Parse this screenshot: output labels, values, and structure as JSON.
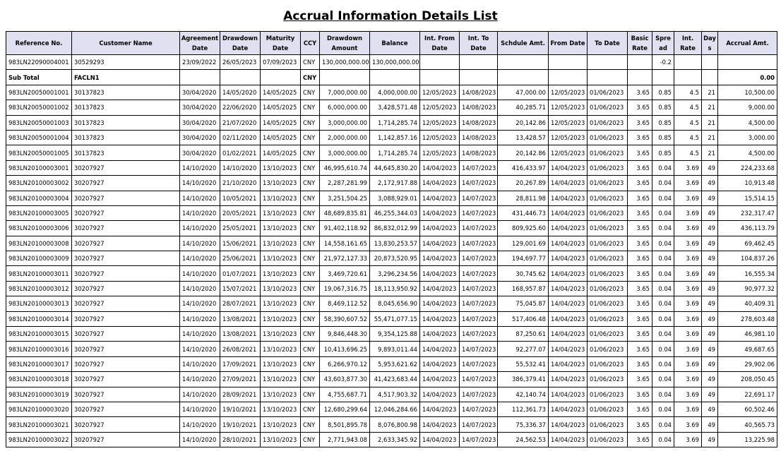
{
  "title": "Accrual Information Details List",
  "headers": [
    "Reference No.",
    "Customer Name",
    "Agreement Date",
    "Drawdown Date",
    "Maturity Date",
    "CCY",
    "Drawdown Amount",
    "Balance",
    "Int. From Date",
    "Int. To Date",
    "Schdule Amt.",
    "From Date",
    "To Date",
    "Basic Rate",
    "Spre ad",
    "Int. Rate",
    "Day s",
    "Accrual Amt."
  ],
  "rows": [
    [
      "983LN22090004001",
      "30529293",
      "23/09/2022",
      "26/05/2023",
      "07/09/2023",
      "CNY",
      "130,000,000.00",
      "130,000,000.00",
      "",
      "",
      "",
      "",
      "",
      "",
      "-0.2",
      "",
      "",
      ""
    ],
    [
      "Sub Total",
      "FACLN1",
      "",
      "",
      "",
      "CNY",
      "",
      "",
      "",
      "",
      "",
      "",
      "",
      "",
      "",
      "",
      "",
      "0.00"
    ],
    [
      "983LN20050001001",
      "30137823",
      "30/04/2020",
      "14/05/2020",
      "14/05/2025",
      "CNY",
      "7,000,000.00",
      "4,000,000.00",
      "12/05/2023",
      "14/08/2023",
      "47,000.00",
      "12/05/2023",
      "01/06/2023",
      "3.65",
      "0.85",
      "4.5",
      "21",
      "10,500.00"
    ],
    [
      "983LN20050001002",
      "30137823",
      "30/04/2020",
      "22/06/2020",
      "14/05/2025",
      "CNY",
      "6,000,000.00",
      "3,428,571.48",
      "12/05/2023",
      "14/08/2023",
      "40,285.71",
      "12/05/2023",
      "01/06/2023",
      "3.65",
      "0.85",
      "4.5",
      "21",
      "9,000.00"
    ],
    [
      "983LN20050001003",
      "30137823",
      "30/04/2020",
      "21/07/2020",
      "14/05/2025",
      "CNY",
      "3,000,000.00",
      "1,714,285.74",
      "12/05/2023",
      "14/08/2023",
      "20,142.86",
      "12/05/2023",
      "01/06/2023",
      "3.65",
      "0.85",
      "4.5",
      "21",
      "4,500.00"
    ],
    [
      "983LN20050001004",
      "30137823",
      "30/04/2020",
      "02/11/2020",
      "14/05/2025",
      "CNY",
      "2,000,000.00",
      "1,142,857.16",
      "12/05/2023",
      "14/08/2023",
      "13,428.57",
      "12/05/2023",
      "01/06/2023",
      "3.65",
      "0.85",
      "4.5",
      "21",
      "3,000.00"
    ],
    [
      "983LN20050001005",
      "30137823",
      "30/04/2020",
      "01/02/2021",
      "14/05/2025",
      "CNY",
      "3,000,000.00",
      "1,714,285.74",
      "12/05/2023",
      "14/08/2023",
      "20,142.86",
      "12/05/2023",
      "01/06/2023",
      "3.65",
      "0.85",
      "4.5",
      "21",
      "4,500.00"
    ],
    [
      "983LN20100003001",
      "30207927",
      "14/10/2020",
      "14/10/2020",
      "13/10/2023",
      "CNY",
      "46,995,610.74",
      "44,645,830.20",
      "14/04/2023",
      "14/07/2023",
      "416,433.97",
      "14/04/2023",
      "01/06/2023",
      "3.65",
      "0.04",
      "3.69",
      "49",
      "224,233.68"
    ],
    [
      "983LN20100003002",
      "30207927",
      "14/10/2020",
      "21/10/2020",
      "13/10/2023",
      "CNY",
      "2,287,281.99",
      "2,172,917.88",
      "14/04/2023",
      "14/07/2023",
      "20,267.89",
      "14/04/2023",
      "01/06/2023",
      "3.65",
      "0.04",
      "3.69",
      "49",
      "10,913.48"
    ],
    [
      "983LN20100003004",
      "30207927",
      "14/10/2020",
      "10/05/2021",
      "13/10/2023",
      "CNY",
      "3,251,504.25",
      "3,088,929.01",
      "14/04/2023",
      "14/07/2023",
      "28,811.98",
      "14/04/2023",
      "01/06/2023",
      "3.65",
      "0.04",
      "3.69",
      "49",
      "15,514.15"
    ],
    [
      "983LN20100003005",
      "30207927",
      "14/10/2020",
      "20/05/2021",
      "13/10/2023",
      "CNY",
      "48,689,835.81",
      "46,255,344.03",
      "14/04/2023",
      "14/07/2023",
      "431,446.73",
      "14/04/2023",
      "01/06/2023",
      "3.65",
      "0.04",
      "3.69",
      "49",
      "232,317.47"
    ],
    [
      "983LN20100003006",
      "30207927",
      "14/10/2020",
      "25/05/2021",
      "13/10/2023",
      "CNY",
      "91,402,118.92",
      "86,832,012.99",
      "14/04/2023",
      "14/07/2023",
      "809,925.60",
      "14/04/2023",
      "01/06/2023",
      "3.65",
      "0.04",
      "3.69",
      "49",
      "436,113.79"
    ],
    [
      "983LN20100003008",
      "30207927",
      "14/10/2020",
      "15/06/2021",
      "13/10/2023",
      "CNY",
      "14,558,161.65",
      "13,830,253.57",
      "14/04/2023",
      "14/07/2023",
      "129,001.69",
      "14/04/2023",
      "01/06/2023",
      "3.65",
      "0.04",
      "3.69",
      "49",
      "69,462.45"
    ],
    [
      "983LN20100003009",
      "30207927",
      "14/10/2020",
      "25/06/2021",
      "13/10/2023",
      "CNY",
      "21,972,127.33",
      "20,873,520.95",
      "14/04/2023",
      "14/07/2023",
      "194,697.77",
      "14/04/2023",
      "01/06/2023",
      "3.65",
      "0.04",
      "3.69",
      "49",
      "104,837.26"
    ],
    [
      "983LN20100003011",
      "30207927",
      "14/10/2020",
      "01/07/2021",
      "13/10/2023",
      "CNY",
      "3,469,720.61",
      "3,296,234.56",
      "14/04/2023",
      "14/07/2023",
      "30,745.62",
      "14/04/2023",
      "01/06/2023",
      "3.65",
      "0.04",
      "3.69",
      "49",
      "16,555.34"
    ],
    [
      "983LN20100003012",
      "30207927",
      "14/10/2020",
      "15/07/2021",
      "13/10/2023",
      "CNY",
      "19,067,316.75",
      "18,113,950.92",
      "14/04/2023",
      "14/07/2023",
      "168,957.87",
      "14/04/2023",
      "01/06/2023",
      "3.65",
      "0.04",
      "3.69",
      "49",
      "90,977.32"
    ],
    [
      "983LN20100003013",
      "30207927",
      "14/10/2020",
      "28/07/2021",
      "13/10/2023",
      "CNY",
      "8,469,112.52",
      "8,045,656.90",
      "14/04/2023",
      "14/07/2023",
      "75,045.87",
      "14/04/2023",
      "01/06/2023",
      "3.65",
      "0.04",
      "3.69",
      "49",
      "40,409.31"
    ],
    [
      "983LN20100003014",
      "30207927",
      "14/10/2020",
      "13/08/2021",
      "13/10/2023",
      "CNY",
      "58,390,607.52",
      "55,471,077.15",
      "14/04/2023",
      "14/07/2023",
      "517,406.48",
      "14/04/2023",
      "01/06/2023",
      "3.65",
      "0.04",
      "3.69",
      "49",
      "278,603.48"
    ],
    [
      "983LN20100003015",
      "30207927",
      "14/10/2020",
      "13/08/2021",
      "13/10/2023",
      "CNY",
      "9,846,448.30",
      "9,354,125.88",
      "14/04/2023",
      "14/07/2023",
      "87,250.61",
      "14/04/2023",
      "01/06/2023",
      "3.65",
      "0.04",
      "3.69",
      "49",
      "46,981.10"
    ],
    [
      "983LN20100003016",
      "30207927",
      "14/10/2020",
      "26/08/2021",
      "13/10/2023",
      "CNY",
      "10,413,696.25",
      "9,893,011.44",
      "14/04/2023",
      "14/07/2023",
      "92,277.07",
      "14/04/2023",
      "01/06/2023",
      "3.65",
      "0.04",
      "3.69",
      "49",
      "49,687.65"
    ],
    [
      "983LN20100003017",
      "30207927",
      "14/10/2020",
      "17/09/2021",
      "13/10/2023",
      "CNY",
      "6,266,970.12",
      "5,953,621.62",
      "14/04/2023",
      "14/07/2023",
      "55,532.41",
      "14/04/2023",
      "01/06/2023",
      "3.65",
      "0.04",
      "3.69",
      "49",
      "29,902.06"
    ],
    [
      "983LN20100003018",
      "30207927",
      "14/10/2020",
      "27/09/2021",
      "13/10/2023",
      "CNY",
      "43,603,877.30",
      "41,423,683.44",
      "14/04/2023",
      "14/07/2023",
      "386,379.41",
      "14/04/2023",
      "01/06/2023",
      "3.65",
      "0.04",
      "3.69",
      "49",
      "208,050.45"
    ],
    [
      "983LN20100003019",
      "30207927",
      "14/10/2020",
      "28/09/2021",
      "13/10/2023",
      "CNY",
      "4,755,687.71",
      "4,517,903.32",
      "14/04/2023",
      "14/07/2023",
      "42,140.74",
      "14/04/2023",
      "01/06/2023",
      "3.65",
      "0.04",
      "3.69",
      "49",
      "22,691.17"
    ],
    [
      "983LN20100003020",
      "30207927",
      "14/10/2020",
      "19/10/2021",
      "13/10/2023",
      "CNY",
      "12,680,299.64",
      "12,046,284.66",
      "14/04/2023",
      "14/07/2023",
      "112,361.73",
      "14/04/2023",
      "01/06/2023",
      "3.65",
      "0.04",
      "3.69",
      "49",
      "60,502.46"
    ],
    [
      "983LN20100003021",
      "30207927",
      "14/10/2020",
      "19/10/2021",
      "13/10/2023",
      "CNY",
      "8,501,895.78",
      "8,076,800.98",
      "14/04/2023",
      "14/07/2023",
      "75,336.37",
      "14/04/2023",
      "01/06/2023",
      "3.65",
      "0.04",
      "3.69",
      "49",
      "40,565.73"
    ],
    [
      "983LN20100003022",
      "30207927",
      "14/10/2020",
      "28/10/2021",
      "13/10/2023",
      "CNY",
      "2,771,943.08",
      "2,633,345.92",
      "14/04/2023",
      "14/07/2023",
      "24,562.53",
      "14/04/2023",
      "01/06/2023",
      "3.65",
      "0.04",
      "3.69",
      "49",
      "13,225.98"
    ]
  ]
}
